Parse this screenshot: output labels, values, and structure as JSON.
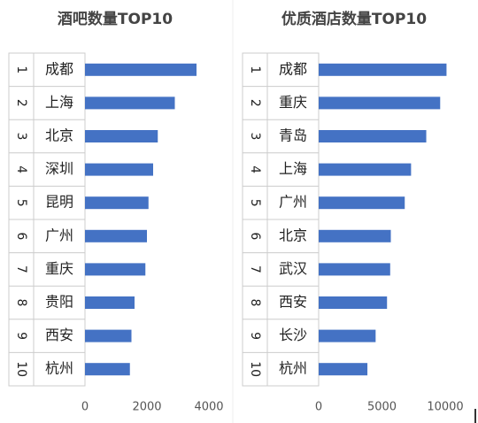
{
  "chart_data": [
    {
      "type": "bar",
      "title": "酒吧数量TOP10",
      "ranks": [
        "1",
        "2",
        "3",
        "4",
        "5",
        "6",
        "7",
        "8",
        "9",
        "10"
      ],
      "categories": [
        "成都",
        "上海",
        "北京",
        "深圳",
        "昆明",
        "广州",
        "重庆",
        "贵阳",
        "西安",
        "杭州"
      ],
      "values": [
        3600,
        2900,
        2350,
        2200,
        2050,
        2000,
        1950,
        1600,
        1500,
        1450
      ],
      "color": "#4472c4",
      "xlim": [
        0,
        4000
      ],
      "xticks": [
        0,
        2000,
        4000
      ]
    },
    {
      "type": "bar",
      "title": "优质酒店数量TOP10",
      "ranks": [
        "1",
        "2",
        "3",
        "4",
        "5",
        "6",
        "7",
        "8",
        "9",
        "10"
      ],
      "categories": [
        "成都",
        "重庆",
        "青岛",
        "上海",
        "广州",
        "北京",
        "武汉",
        "西安",
        "长沙",
        "杭州"
      ],
      "values": [
        10100,
        9600,
        8500,
        7300,
        6800,
        5700,
        5650,
        5400,
        4500,
        3850
      ],
      "color": "#4472c4",
      "xlim": [
        0,
        10000
      ],
      "xticks": [
        0,
        5000,
        10000
      ]
    }
  ]
}
